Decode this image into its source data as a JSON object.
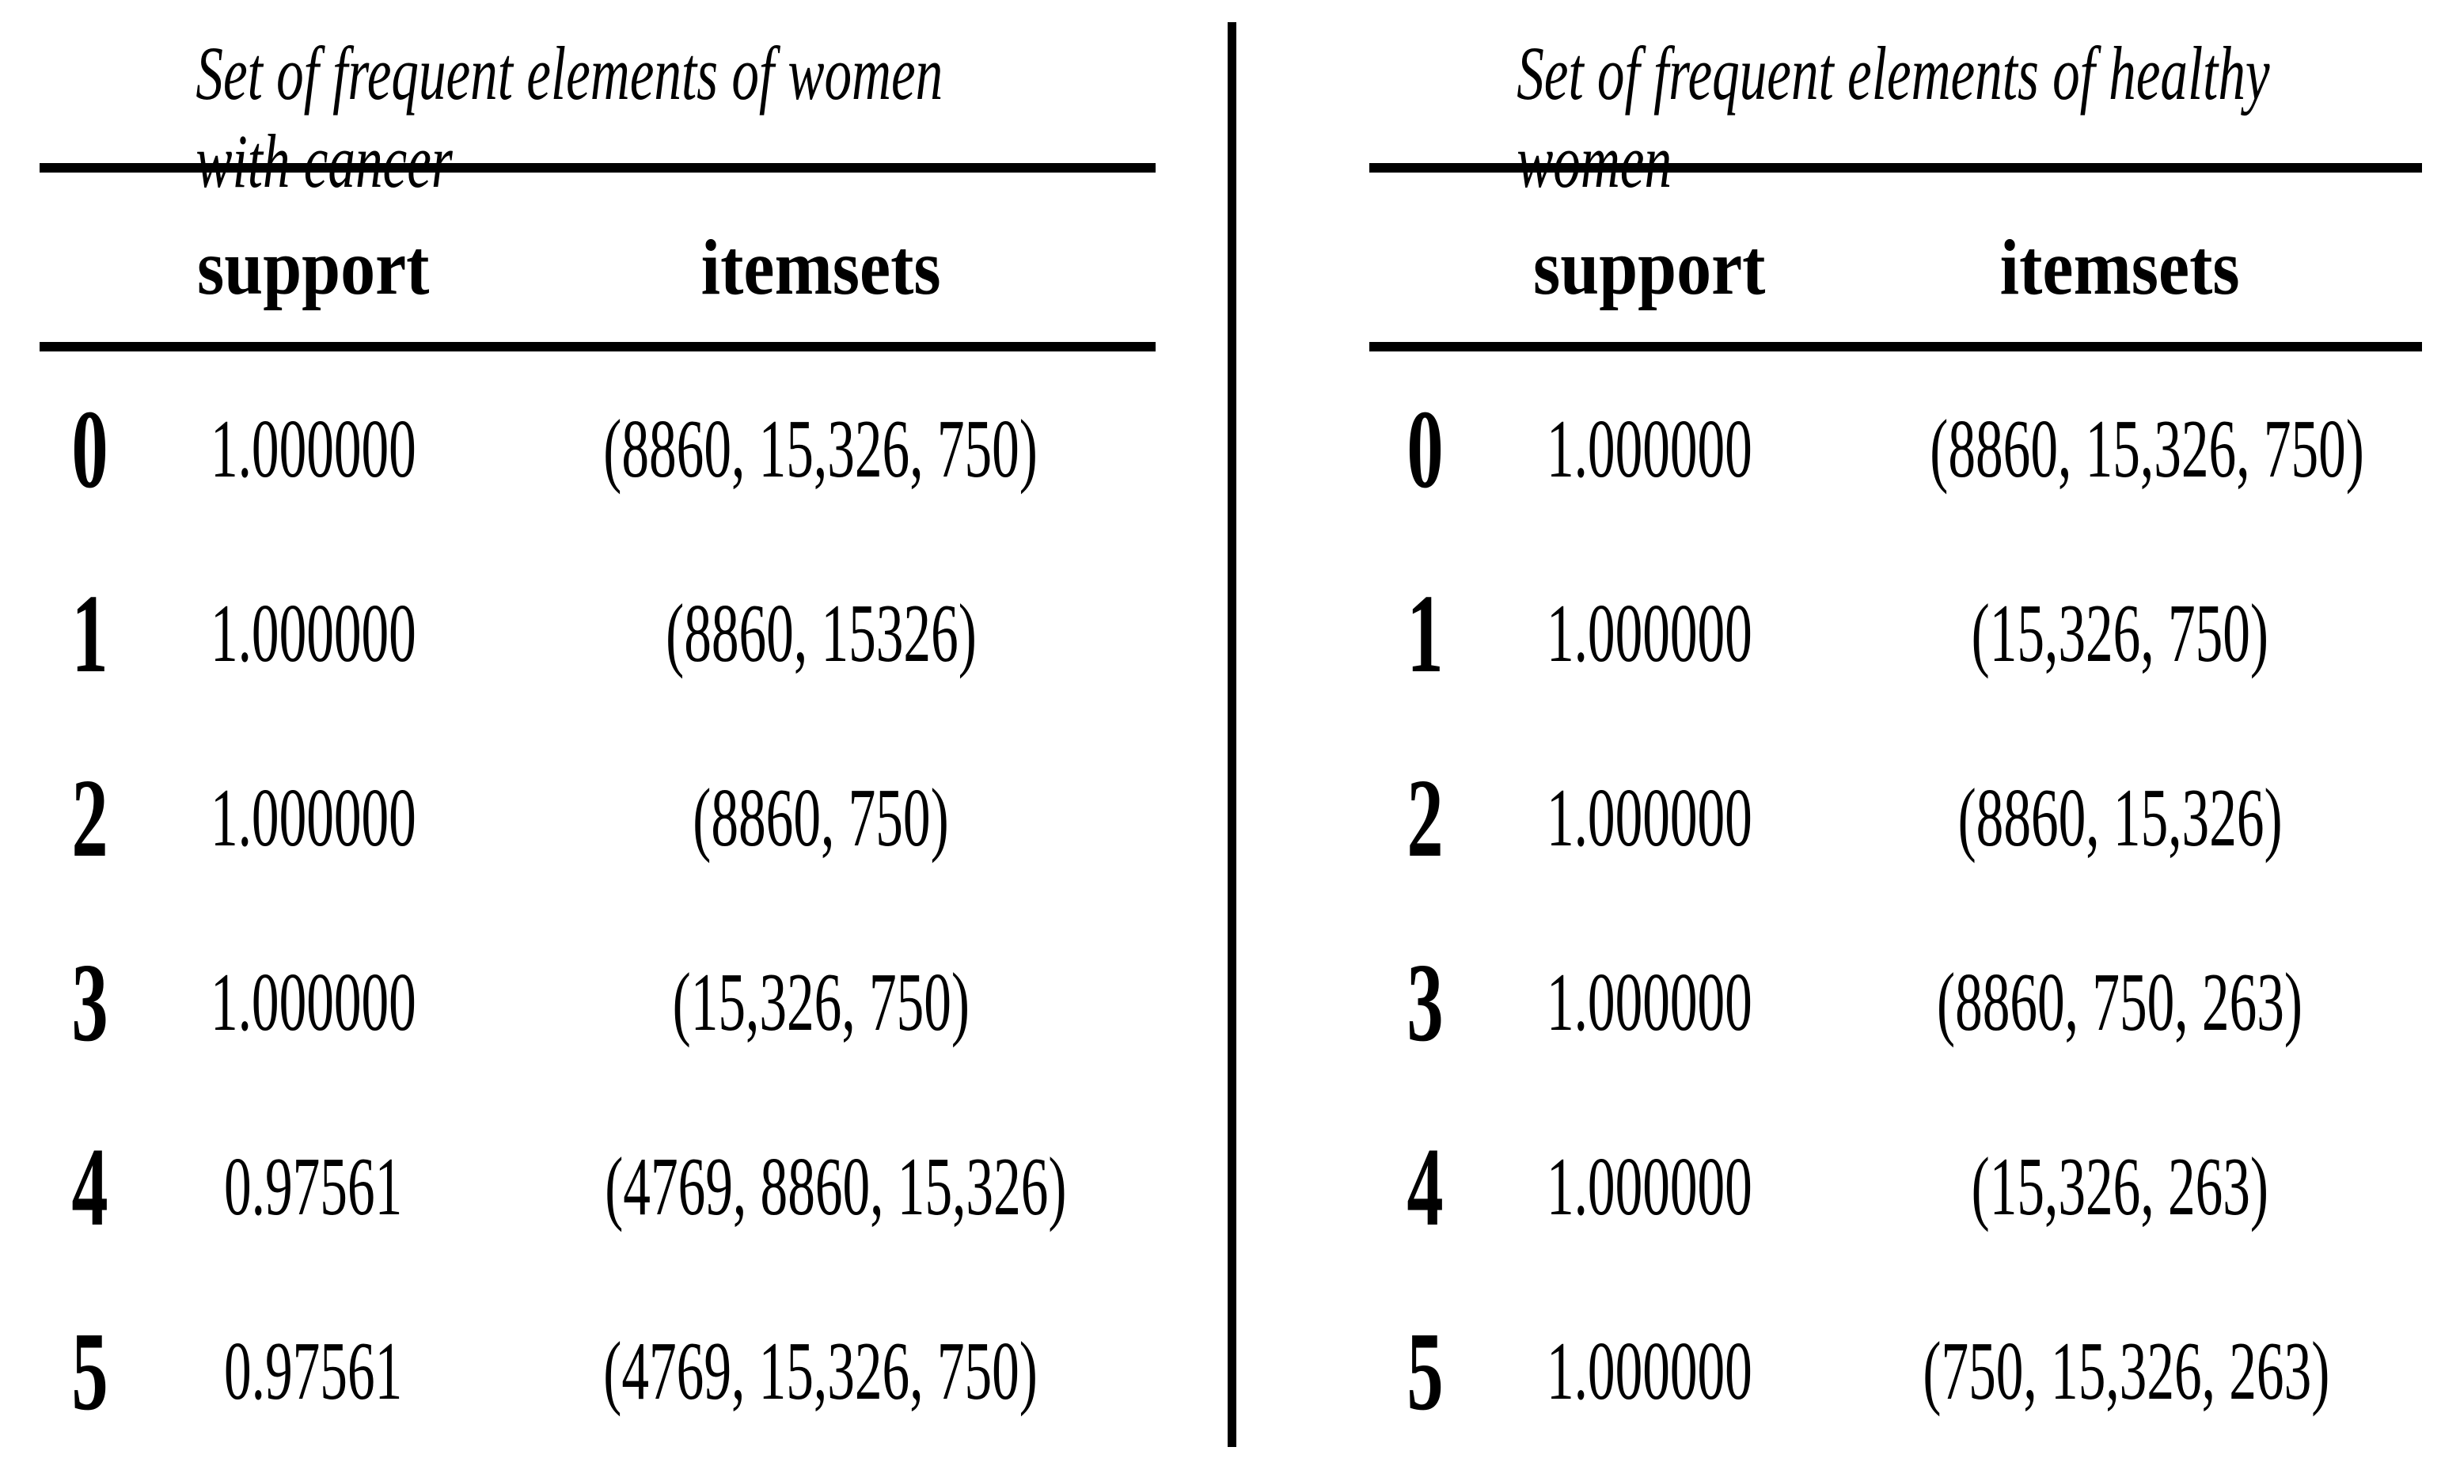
{
  "colors": {
    "background": "#ffffff",
    "ink": "#000000"
  },
  "chart_data": [
    {
      "type": "table",
      "title": "Set of frequent elements of women with cancer",
      "columns": [
        "support",
        "itemsets"
      ],
      "rows": [
        {
          "index": "0",
          "support": "1.000000",
          "itemsets": "(8860, 15,326, 750)"
        },
        {
          "index": "1",
          "support": "1.000000",
          "itemsets": "(8860, 15326)"
        },
        {
          "index": "2",
          "support": "1.000000",
          "itemsets": "(8860, 750)"
        },
        {
          "index": "3",
          "support": "1.000000",
          "itemsets": "(15,326, 750)"
        },
        {
          "index": "4",
          "support": "0.97561",
          "itemsets": "(4769, 8860, 15,326)"
        },
        {
          "index": "5",
          "support": "0.97561",
          "itemsets": "(4769, 15,326, 750)"
        }
      ]
    },
    {
      "type": "table",
      "title": "Set of frequent elements of healthy women",
      "columns": [
        "support",
        "itemsets"
      ],
      "rows": [
        {
          "index": "0",
          "support": "1.000000",
          "itemsets": "(8860, 15,326, 750)"
        },
        {
          "index": "1",
          "support": "1.000000",
          "itemsets": "(15,326, 750)"
        },
        {
          "index": "2",
          "support": "1.000000",
          "itemsets": "(8860, 15,326)"
        },
        {
          "index": "3",
          "support": "1.000000",
          "itemsets": "(8860, 750, 263)"
        },
        {
          "index": "4",
          "support": "1.000000",
          "itemsets": "(15,326, 263)"
        },
        {
          "index": "5",
          "support": "1.000000",
          "itemsets": "(750, 15,326, 263)"
        }
      ]
    }
  ]
}
